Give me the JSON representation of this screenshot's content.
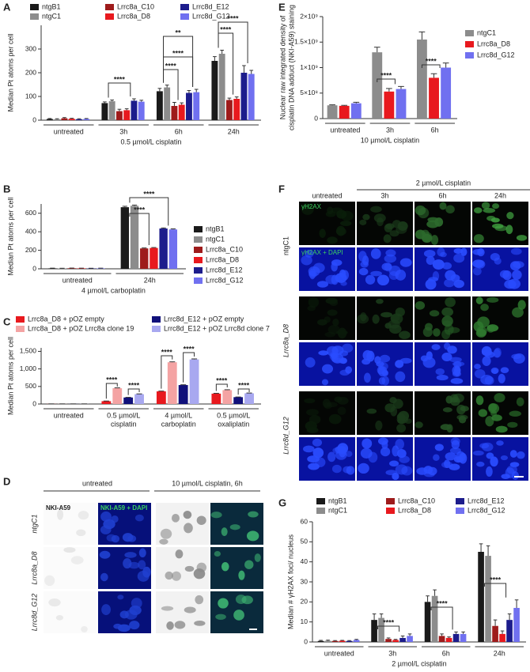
{
  "chart_data": [
    {
      "panel": "A",
      "type": "bar",
      "ylabel": [
        "Median Pt atoms per cell"
      ],
      "xlabel": "0.5 µmol/L cisplatin",
      "categories": [
        [
          "untreated"
        ],
        [
          "3h"
        ],
        [
          "6h"
        ],
        [
          "24h"
        ]
      ],
      "ylim": [
        0,
        400
      ],
      "yticks": [
        0,
        100,
        200,
        300
      ],
      "legend": "top",
      "series": [
        {
          "name": "ntgB1",
          "color": "#1a1a1a",
          "values": [
            5,
            72,
            122,
            250
          ],
          "errors": [
            2,
            5,
            12,
            18
          ]
        },
        {
          "name": "ntgC1",
          "color": "#8c8c8c",
          "values": [
            4,
            80,
            138,
            280
          ],
          "errors": [
            2,
            5,
            10,
            15
          ]
        },
        {
          "name": "Lrrc8a_C10",
          "color": "#9e1b1b",
          "values": [
            8,
            38,
            60,
            85
          ],
          "errors": [
            3,
            8,
            15,
            8
          ]
        },
        {
          "name": "Lrrc8a_D8",
          "color": "#e8191e",
          "values": [
            6,
            42,
            65,
            90
          ],
          "errors": [
            2,
            6,
            8,
            8
          ]
        },
        {
          "name": "Lrrc8d_E12",
          "color": "#1c1c8c",
          "values": [
            4,
            82,
            115,
            200
          ],
          "errors": [
            2,
            8,
            10,
            30
          ]
        },
        {
          "name": "Lrrc8d_G12",
          "color": "#7070f0",
          "values": [
            5,
            78,
            118,
            195
          ],
          "errors": [
            2,
            6,
            12,
            15
          ]
        }
      ],
      "annotations": [
        "****",
        "****",
        "****",
        "**",
        "****",
        "****"
      ]
    },
    {
      "panel": "B",
      "type": "bar",
      "ylabel": [
        "Median Pt atoms per cell"
      ],
      "xlabel": "4 µmol/L carboplatin",
      "categories": [
        [
          "untreated"
        ],
        [
          "24h"
        ]
      ],
      "ylim": [
        0,
        700
      ],
      "yticks": [
        0,
        200,
        400,
        600
      ],
      "legend": "right",
      "series": [
        {
          "name": "ntgB1",
          "color": "#1a1a1a",
          "values": [
            5,
            665
          ],
          "errors": [
            2,
            10
          ]
        },
        {
          "name": "ntgC1",
          "color": "#8c8c8c",
          "values": [
            4,
            680
          ],
          "errors": [
            2,
            8
          ]
        },
        {
          "name": "Lrrc8a_C10",
          "color": "#9e1b1b",
          "values": [
            6,
            220
          ],
          "errors": [
            2,
            5
          ]
        },
        {
          "name": "Lrrc8a_D8",
          "color": "#e8191e",
          "values": [
            5,
            225
          ],
          "errors": [
            2,
            5
          ]
        },
        {
          "name": "Lrrc8d_E12",
          "color": "#1c1c8c",
          "values": [
            4,
            435
          ],
          "errors": [
            2,
            6
          ]
        },
        {
          "name": "Lrrc8d_G12",
          "color": "#7070f0",
          "values": [
            5,
            425
          ],
          "errors": [
            2,
            6
          ]
        }
      ],
      "annotations": [
        "****",
        "****"
      ]
    },
    {
      "panel": "C",
      "type": "bar",
      "ylabel": [
        "Median Pt atoms per cell"
      ],
      "categories": [
        [
          "untreated"
        ],
        [
          "0.5 µmol/L",
          "cisplatin"
        ],
        [
          "4 µmol/L",
          "carboplatin"
        ],
        [
          "0.5 µmol/L",
          "oxaliplatin"
        ]
      ],
      "ylim": [
        0,
        1600
      ],
      "yticks": [
        0,
        500,
        {
          "value": 1000,
          "label": "1,000"
        },
        {
          "value": 1500,
          "label": "1,500"
        }
      ],
      "legend": "top",
      "series": [
        {
          "name": "Lrrc8a_D8 + pOZ empty",
          "color": "#e8191e",
          "values": [
            3,
            80,
            360,
            295
          ],
          "errors": [
            1,
            5,
            8,
            10
          ]
        },
        {
          "name": "Lrrc8a_D8 + pOZ Lrrc8a clone 19",
          "color": "#f4a3a3",
          "values": [
            3,
            450,
            1190,
            395
          ],
          "errors": [
            1,
            10,
            12,
            12
          ]
        },
        {
          "name": "Lrrc8d_E12 + pOZ empty",
          "color": "#10107a",
          "values": [
            3,
            185,
            540,
            195
          ],
          "errors": [
            1,
            5,
            8,
            5
          ]
        },
        {
          "name": "Lrrc8d_E12 + pOZ Lrrc8d clone 7",
          "color": "#a8a8f0",
          "values": [
            3,
            280,
            1270,
            305
          ],
          "errors": [
            1,
            8,
            15,
            8
          ]
        }
      ],
      "annotations": [
        "****",
        "****",
        "****",
        "****",
        "****",
        "****"
      ]
    },
    {
      "panel": "E",
      "type": "bar",
      "ylabel": [
        "Nuclear raw integrated density of",
        "cisplatin DNA adduct (NKI-A59) staining"
      ],
      "xlabel": "10 µmol/L cisplatin",
      "categories": [
        [
          "untreated"
        ],
        [
          "3h"
        ],
        [
          "6h"
        ]
      ],
      "ylim": [
        0,
        2000000000
      ],
      "yticks": [
        0,
        {
          "value": 500000000,
          "label": "5×10⁸"
        },
        {
          "value": 1000000000,
          "label": "1×10⁹"
        },
        {
          "value": 1500000000,
          "label": "1.5×10⁹"
        },
        {
          "value": 2000000000,
          "label": "2×10⁹"
        }
      ],
      "legend": "right",
      "series": [
        {
          "name": "ntgC1",
          "color": "#8c8c8c",
          "values": [
            260000000,
            1300000000,
            1550000000
          ],
          "errors": [
            10000000,
            100000000,
            150000000
          ]
        },
        {
          "name": "Lrrc8a_D8",
          "color": "#e8191e",
          "values": [
            250000000,
            530000000,
            800000000
          ],
          "errors": [
            10000000,
            60000000,
            80000000
          ]
        },
        {
          "name": "Lrrc8d_G12",
          "color": "#7070f0",
          "values": [
            300000000,
            580000000,
            1000000000
          ],
          "errors": [
            20000000,
            50000000,
            90000000
          ]
        }
      ],
      "annotations": [
        "****",
        "****"
      ]
    },
    {
      "panel": "G",
      "type": "bar",
      "ylabel": [
        "Median # γH2AX foci/ nucleus"
      ],
      "xlabel": "2 µmol/L cisplatin",
      "categories": [
        [
          "untreated"
        ],
        [
          "3h"
        ],
        [
          "6h"
        ],
        [
          "24h"
        ]
      ],
      "ylim": [
        0,
        60
      ],
      "yticks": [
        0,
        10,
        20,
        30,
        40,
        50,
        60
      ],
      "legend": "top",
      "series": [
        {
          "name": "ntgB1",
          "color": "#1a1a1a",
          "values": [
            0.5,
            11,
            20,
            45
          ],
          "errors": [
            0.3,
            3,
            3,
            4
          ]
        },
        {
          "name": "ntgC1",
          "color": "#8c8c8c",
          "values": [
            0.6,
            12,
            23,
            43
          ],
          "errors": [
            0.3,
            2,
            3,
            5
          ]
        },
        {
          "name": "Lrrc8a_C10",
          "color": "#9e1b1b",
          "values": [
            0.5,
            1.5,
            3,
            8
          ],
          "errors": [
            0.2,
            0.5,
            1,
            3
          ]
        },
        {
          "name": "Lrrc8a_D8",
          "color": "#e8191e",
          "values": [
            0.6,
            1,
            2,
            4
          ],
          "errors": [
            0.2,
            0.3,
            0.5,
            1.5
          ]
        },
        {
          "name": "Lrrc8d_E12",
          "color": "#1c1c8c",
          "values": [
            0.5,
            2,
            4,
            11
          ],
          "errors": [
            0.2,
            1,
            1,
            3
          ]
        },
        {
          "name": "Lrrc8d_G12",
          "color": "#7070f0",
          "values": [
            1,
            3,
            4,
            17
          ],
          "errors": [
            0.3,
            1,
            1,
            4
          ]
        }
      ],
      "annotations": [
        "****",
        "****",
        "****"
      ]
    }
  ],
  "images": [
    {
      "panel": "D",
      "column_headers": [
        "untreated",
        "10 µmol/L cisplatin, 6h"
      ],
      "row_labels": [
        "ntgC1",
        "Lrrc8a_D8",
        "Lrrc8d_G12"
      ],
      "channel_labels": [
        "NKI-A59",
        "NKI-A59 + DAPI"
      ]
    },
    {
      "panel": "F",
      "header": "2 µmol/L cisplatin",
      "columns": [
        "untreated",
        "3h",
        "6h",
        "24h"
      ],
      "row_labels": [
        "ntgC1",
        "Lrrc8a_D8",
        "Lrrc8d_G12"
      ],
      "channel_labels": [
        "γH2AX",
        "γH2AX + DAPI"
      ]
    }
  ]
}
